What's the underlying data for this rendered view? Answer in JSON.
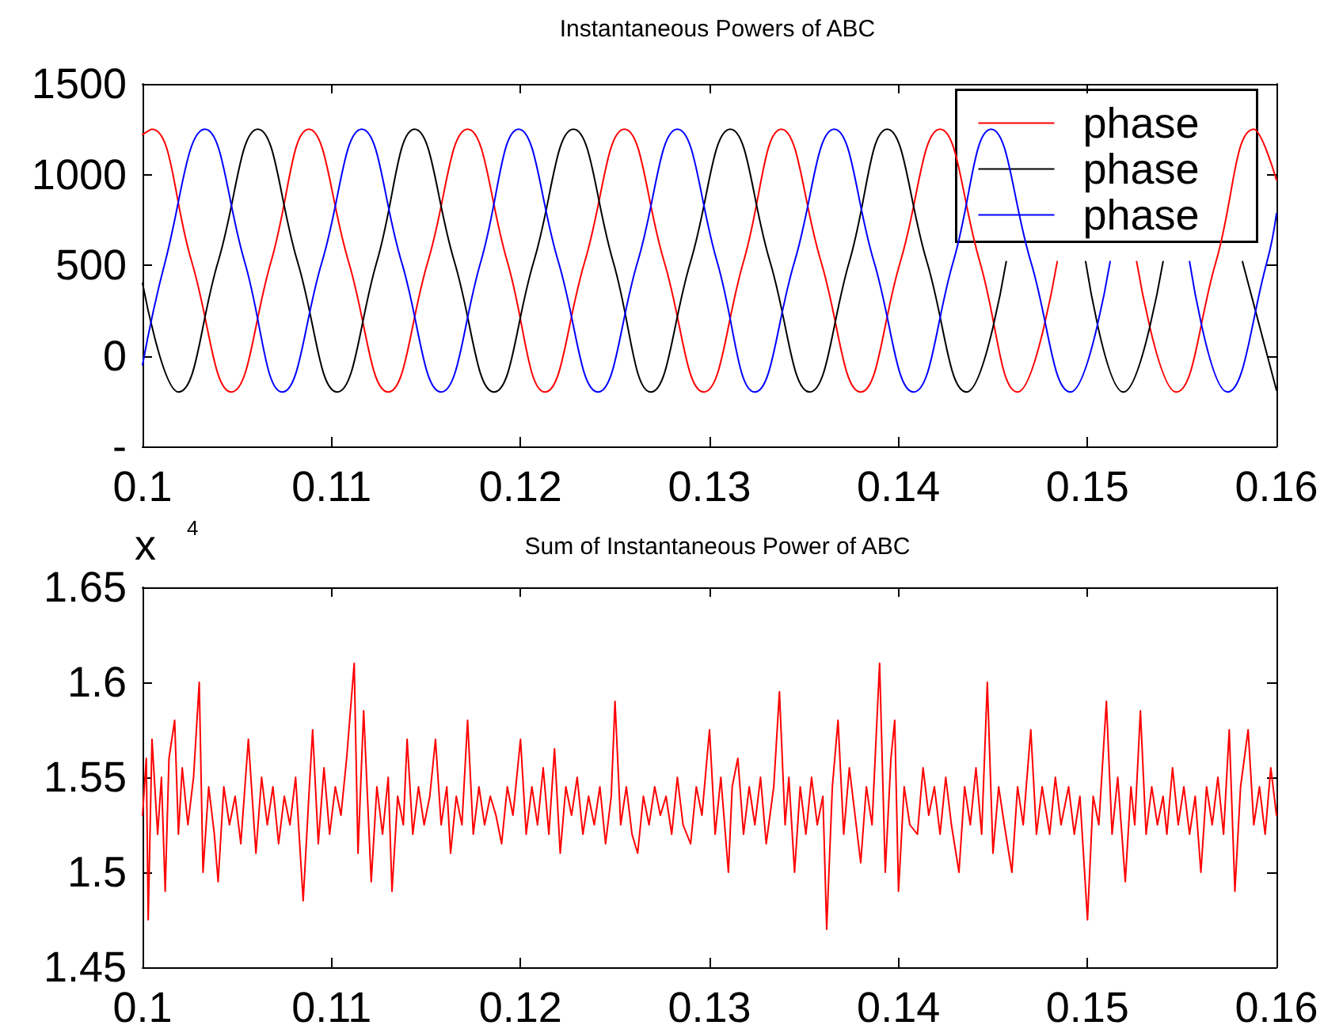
{
  "chart_data": [
    {
      "type": "line",
      "title": "Instantaneous Powers of ABC",
      "xlim": [
        0.1,
        0.16
      ],
      "xticks": [
        0.1,
        0.11,
        0.12,
        0.13,
        0.14,
        0.15,
        0.16
      ],
      "ylim": [
        -500,
        1500
      ],
      "yticks": [
        {
          "value": -500,
          "label": "-"
        },
        0,
        500,
        1000,
        1500
      ],
      "grid": false,
      "legend": "top right",
      "marker": "none",
      "line_style": "solid",
      "series": [
        {
          "name": "phase",
          "color": "#ff0000",
          "x": [
            0.1,
            0.1005,
            0.1026,
            0.1047,
            0.1068,
            0.1088,
            0.1109,
            0.113,
            0.1151,
            0.1172,
            0.1193,
            0.1213,
            0.1234,
            0.1255,
            0.1276,
            0.1297,
            0.1318,
            0.1338,
            0.1359,
            0.138,
            0.1401,
            0.1422,
            0.1443,
            0.1463,
            0.1484,
            0.1505,
            0.1526,
            0.1547,
            0.1568,
            0.1588,
            0.16
          ],
          "values": [
            1220,
            1250,
            520,
            -200,
            520,
            1250,
            520,
            -200,
            520,
            1250,
            520,
            -200,
            520,
            1250,
            520,
            -200,
            520,
            1250,
            520,
            -200,
            520,
            1250,
            520,
            -200,
            520,
            null,
            520,
            -200,
            520,
            1250,
            970
          ]
        },
        {
          "name": "phase",
          "color": "#000000",
          "x": [
            0.1,
            0.1019,
            0.104,
            0.1061,
            0.1082,
            0.1103,
            0.1124,
            0.1144,
            0.1165,
            0.1186,
            0.1207,
            0.1228,
            0.1249,
            0.1269,
            0.129,
            0.1311,
            0.1332,
            0.1353,
            0.1374,
            0.1394,
            0.1415,
            0.1436,
            0.1457,
            0.1478,
            0.1499,
            0.1519,
            0.154,
            0.1561,
            0.1582,
            0.16
          ],
          "values": [
            400,
            -200,
            520,
            1250,
            520,
            -200,
            520,
            1250,
            520,
            -200,
            520,
            1250,
            520,
            -200,
            520,
            1250,
            520,
            -200,
            520,
            1250,
            520,
            -200,
            520,
            null,
            520,
            -200,
            520,
            null,
            520,
            -190
          ]
        },
        {
          "name": "phase",
          "color": "#0000ff",
          "x": [
            0.1,
            0.1012,
            0.1033,
            0.1054,
            0.1074,
            0.1095,
            0.1116,
            0.1137,
            0.1158,
            0.1179,
            0.1199,
            0.122,
            0.1241,
            0.1262,
            0.1283,
            0.1304,
            0.1324,
            0.1345,
            0.1366,
            0.1387,
            0.1408,
            0.1429,
            0.1449,
            0.147,
            0.1491,
            0.1512,
            0.1533,
            0.1554,
            0.1574,
            0.1595,
            0.16
          ],
          "values": [
            -50,
            520,
            1250,
            520,
            -200,
            520,
            1250,
            520,
            -200,
            520,
            1250,
            520,
            -200,
            520,
            1250,
            520,
            -200,
            520,
            1250,
            520,
            -200,
            520,
            1250,
            520,
            -200,
            520,
            null,
            520,
            -200,
            520,
            785
          ]
        }
      ]
    },
    {
      "type": "line",
      "title": "Sum of Instantaneous Power of ABC",
      "annotations": [
        "x $^{4}$"
      ],
      "xlim": [
        0.1,
        0.16
      ],
      "xticks": [
        0.1,
        0.11,
        0.12,
        0.13,
        0.14,
        0.15,
        0.16
      ],
      "ylim": [
        1.45,
        1.65
      ],
      "yticks": [
        1.45,
        1.5,
        1.55,
        1.6,
        1.65
      ],
      "grid": false,
      "marker": "none",
      "line_style": "solid",
      "color": "#ff0000",
      "x": [
        0.1,
        0.1002,
        0.1003,
        0.1005,
        0.1008,
        0.101,
        0.1012,
        0.1014,
        0.1017,
        0.1019,
        0.1021,
        0.1024,
        0.1027,
        0.103,
        0.1032,
        0.1035,
        0.1038,
        0.104,
        0.1043,
        0.1046,
        0.1049,
        0.1052,
        0.1056,
        0.106,
        0.1063,
        0.1066,
        0.1069,
        0.1072,
        0.1075,
        0.1078,
        0.1081,
        0.1085,
        0.1088,
        0.109,
        0.1093,
        0.1096,
        0.1099,
        0.1102,
        0.1105,
        0.1108,
        0.1112,
        0.1114,
        0.1117,
        0.1121,
        0.1124,
        0.1127,
        0.113,
        0.1132,
        0.1135,
        0.1138,
        0.114,
        0.1143,
        0.1146,
        0.1149,
        0.1152,
        0.1155,
        0.1158,
        0.1161,
        0.1163,
        0.1166,
        0.1169,
        0.1172,
        0.1175,
        0.1178,
        0.1181,
        0.1184,
        0.1187,
        0.119,
        0.1193,
        0.1196,
        0.12,
        0.1203,
        0.1206,
        0.1209,
        0.1212,
        0.1215,
        0.1218,
        0.1221,
        0.1224,
        0.1227,
        0.123,
        0.1233,
        0.1236,
        0.1239,
        0.1242,
        0.1245,
        0.1248,
        0.125,
        0.1253,
        0.1256,
        0.1259,
        0.1262,
        0.1265,
        0.1268,
        0.1271,
        0.1274,
        0.1277,
        0.128,
        0.1283,
        0.1286,
        0.129,
        0.1293,
        0.1296,
        0.13,
        0.1303,
        0.1306,
        0.131,
        0.1312,
        0.1315,
        0.1318,
        0.1321,
        0.1324,
        0.1327,
        0.133,
        0.1334,
        0.1337,
        0.134,
        0.1342,
        0.1345,
        0.1348,
        0.1351,
        0.1354,
        0.1357,
        0.136,
        0.1362,
        0.1365,
        0.1368,
        0.1371,
        0.1374,
        0.1377,
        0.138,
        0.1383,
        0.1386,
        0.139,
        0.1393,
        0.1396,
        0.1398,
        0.14,
        0.1403,
        0.1406,
        0.141,
        0.1413,
        0.1416,
        0.1419,
        0.1422,
        0.1425,
        0.1428,
        0.1432,
        0.1435,
        0.1438,
        0.1441,
        0.1444,
        0.1447,
        0.145,
        0.1453,
        0.1456,
        0.146,
        0.1463,
        0.1466,
        0.147,
        0.1473,
        0.1476,
        0.148,
        0.1483,
        0.1486,
        0.149,
        0.1493,
        0.1496,
        0.15,
        0.1503,
        0.1506,
        0.151,
        0.1513,
        0.1516,
        0.152,
        0.1523,
        0.1525,
        0.1528,
        0.1531,
        0.1534,
        0.1537,
        0.154,
        0.1542,
        0.1545,
        0.1548,
        0.1551,
        0.1554,
        0.1557,
        0.156,
        0.1563,
        0.1566,
        0.1569,
        0.1572,
        0.1575,
        0.1578,
        0.1581,
        0.1585,
        0.1588,
        0.1591,
        0.1594,
        0.1597,
        0.16
      ],
      "values": [
        1.53,
        1.56,
        1.475,
        1.57,
        1.52,
        1.55,
        1.49,
        1.56,
        1.58,
        1.52,
        1.555,
        1.525,
        1.55,
        1.6,
        1.5,
        1.545,
        1.52,
        1.495,
        1.545,
        1.525,
        1.54,
        1.515,
        1.57,
        1.51,
        1.55,
        1.525,
        1.545,
        1.515,
        1.54,
        1.525,
        1.55,
        1.485,
        1.54,
        1.575,
        1.515,
        1.555,
        1.52,
        1.545,
        1.53,
        1.56,
        1.61,
        1.51,
        1.585,
        1.495,
        1.545,
        1.52,
        1.55,
        1.49,
        1.54,
        1.525,
        1.57,
        1.52,
        1.545,
        1.525,
        1.54,
        1.57,
        1.525,
        1.545,
        1.51,
        1.54,
        1.525,
        1.58,
        1.52,
        1.545,
        1.525,
        1.54,
        1.53,
        1.515,
        1.545,
        1.53,
        1.57,
        1.52,
        1.545,
        1.525,
        1.555,
        1.52,
        1.565,
        1.51,
        1.545,
        1.53,
        1.55,
        1.52,
        1.54,
        1.525,
        1.545,
        1.515,
        1.54,
        1.59,
        1.525,
        1.545,
        1.52,
        1.51,
        1.54,
        1.525,
        1.545,
        1.53,
        1.54,
        1.52,
        1.55,
        1.525,
        1.515,
        1.545,
        1.53,
        1.575,
        1.52,
        1.55,
        1.5,
        1.545,
        1.56,
        1.52,
        1.545,
        1.525,
        1.55,
        1.515,
        1.545,
        1.595,
        1.525,
        1.55,
        1.5,
        1.545,
        1.52,
        1.55,
        1.525,
        1.54,
        1.47,
        1.545,
        1.58,
        1.52,
        1.555,
        1.53,
        1.505,
        1.545,
        1.525,
        1.61,
        1.5,
        1.56,
        1.58,
        1.49,
        1.545,
        1.525,
        1.52,
        1.555,
        1.53,
        1.545,
        1.52,
        1.55,
        1.525,
        1.5,
        1.545,
        1.525,
        1.555,
        1.52,
        1.6,
        1.51,
        1.545,
        1.525,
        1.5,
        1.545,
        1.525,
        1.575,
        1.52,
        1.545,
        1.52,
        1.55,
        1.525,
        1.545,
        1.52,
        1.54,
        1.475,
        1.54,
        1.525,
        1.59,
        1.52,
        1.55,
        1.495,
        1.545,
        1.525,
        1.585,
        1.52,
        1.545,
        1.525,
        1.54,
        1.52,
        1.555,
        1.525,
        1.545,
        1.52,
        1.54,
        1.5,
        1.545,
        1.525,
        1.55,
        1.52,
        1.575,
        1.49,
        1.545,
        1.575,
        1.525,
        1.545,
        1.52,
        1.555,
        1.53
      ]
    }
  ]
}
